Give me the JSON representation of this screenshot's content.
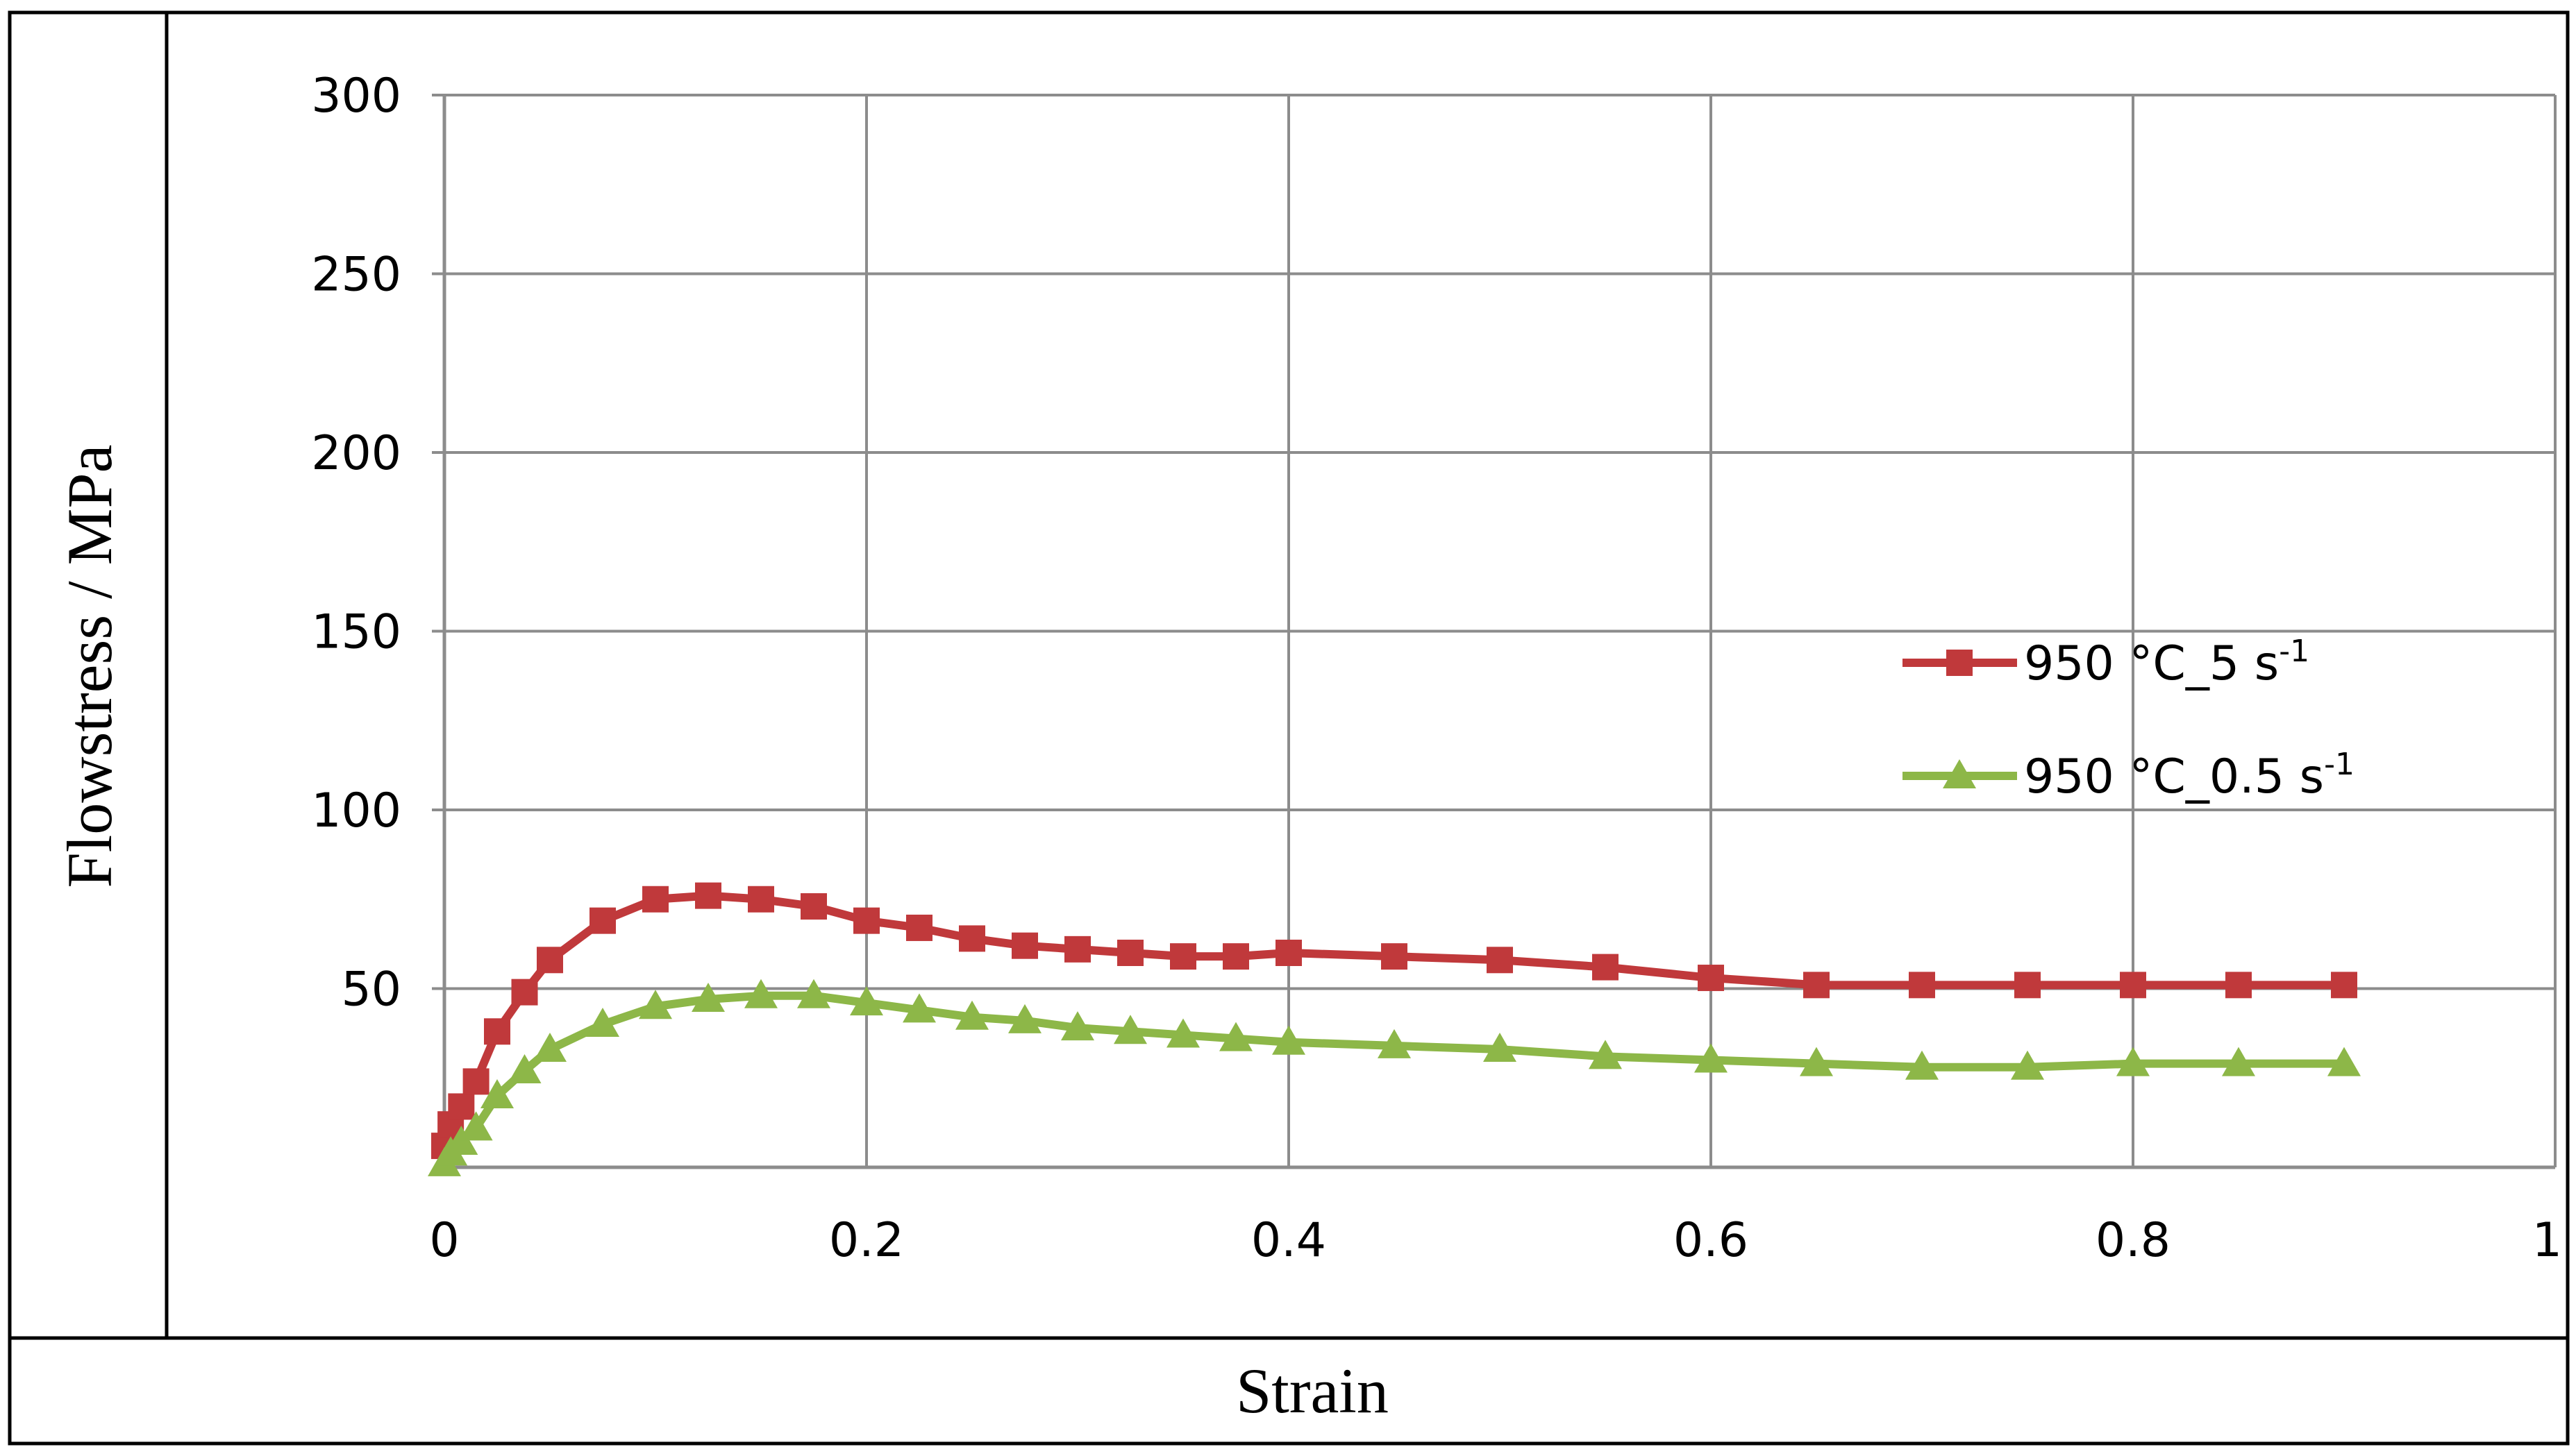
{
  "chart_data": {
    "type": "line",
    "title": "",
    "xlabel": "Strain",
    "ylabel": "Flowstress / MPa",
    "xlim": [
      0,
      1
    ],
    "ylim": [
      0,
      300
    ],
    "xticks": [
      0,
      0.2,
      0.4,
      0.6,
      0.8,
      1
    ],
    "yticks": [
      50,
      100,
      150,
      200,
      250,
      300
    ],
    "xtick_labels": [
      "0",
      "0.2",
      "0.4",
      "0.6",
      "0.8",
      "1"
    ],
    "ytick_labels": [
      "50",
      "100",
      "150",
      "200",
      "250",
      "300"
    ],
    "grid": true,
    "legend_position": "right",
    "series": [
      {
        "name": "950 °C_5 s-1",
        "label_main": "950 °C_5 s",
        "label_sup": "-1",
        "color": "#c0393b",
        "marker": "square",
        "x": [
          0,
          0.003,
          0.008,
          0.015,
          0.025,
          0.038,
          0.05,
          0.075,
          0.1,
          0.125,
          0.15,
          0.175,
          0.2,
          0.225,
          0.25,
          0.275,
          0.3,
          0.325,
          0.35,
          0.375,
          0.4,
          0.45,
          0.5,
          0.55,
          0.6,
          0.65,
          0.7,
          0.75,
          0.8,
          0.85,
          0.9
        ],
        "y": [
          6,
          12,
          17,
          24,
          38,
          49,
          58,
          69,
          75,
          76,
          75,
          73,
          69,
          67,
          64,
          62,
          61,
          60,
          59,
          59,
          60,
          59,
          58,
          56,
          53,
          51,
          51,
          51,
          51,
          51,
          51
        ]
      },
      {
        "name": "950 °C_0.5 s-1",
        "label_main": "950 °C_0.5 s",
        "label_sup": "-1",
        "color": "#8db748",
        "marker": "triangle",
        "x": [
          0,
          0.003,
          0.008,
          0.015,
          0.025,
          0.038,
          0.05,
          0.075,
          0.1,
          0.125,
          0.15,
          0.175,
          0.2,
          0.225,
          0.25,
          0.275,
          0.3,
          0.325,
          0.35,
          0.375,
          0.4,
          0.45,
          0.5,
          0.55,
          0.6,
          0.65,
          0.7,
          0.75,
          0.8,
          0.85,
          0.9
        ],
        "y": [
          1,
          4,
          7,
          11,
          20,
          27,
          33,
          40,
          45,
          47,
          48,
          48,
          46,
          44,
          42,
          41,
          39,
          38,
          37,
          36,
          35,
          34,
          33,
          31,
          30,
          29,
          28,
          28,
          29,
          29,
          29
        ]
      }
    ]
  }
}
